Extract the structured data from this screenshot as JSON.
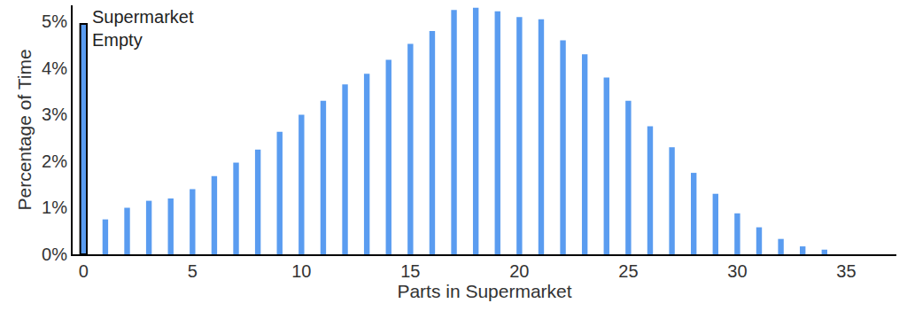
{
  "chart_data": {
    "type": "bar",
    "x_label": "Parts in Supermarket",
    "y_label": "Percentage of Time",
    "x": [
      0,
      1,
      2,
      3,
      4,
      5,
      6,
      7,
      8,
      9,
      10,
      11,
      12,
      13,
      14,
      15,
      16,
      17,
      18,
      19,
      20,
      21,
      22,
      23,
      24,
      25,
      26,
      27,
      28,
      29,
      30,
      31,
      32,
      33,
      34
    ],
    "values": [
      4.95,
      0.75,
      1.0,
      1.15,
      1.2,
      1.4,
      1.68,
      1.97,
      2.25,
      2.63,
      3.0,
      3.3,
      3.65,
      3.88,
      4.18,
      4.52,
      4.8,
      5.25,
      5.3,
      5.22,
      5.1,
      5.05,
      4.6,
      4.3,
      3.8,
      3.3,
      2.75,
      2.3,
      1.75,
      1.3,
      0.88,
      0.58,
      0.33,
      0.17,
      0.1
    ],
    "color": "#5a9cf0",
    "xlim": [
      -0.5,
      37.3
    ],
    "xticks": [
      0,
      5,
      10,
      15,
      20,
      25,
      30,
      35
    ],
    "ylim": [
      0,
      5.35
    ],
    "yticks": [
      {
        "value": 0,
        "label": "0%"
      },
      {
        "value": 1,
        "label": "1%"
      },
      {
        "value": 2,
        "label": "2%"
      },
      {
        "value": 3,
        "label": "3%"
      },
      {
        "value": 4,
        "label": "4%"
      },
      {
        "value": 5,
        "label": "5%"
      }
    ],
    "grid": false,
    "annotations": [
      {
        "x": 0,
        "lines": [
          "Supermarket",
          "Empty"
        ]
      }
    ]
  }
}
